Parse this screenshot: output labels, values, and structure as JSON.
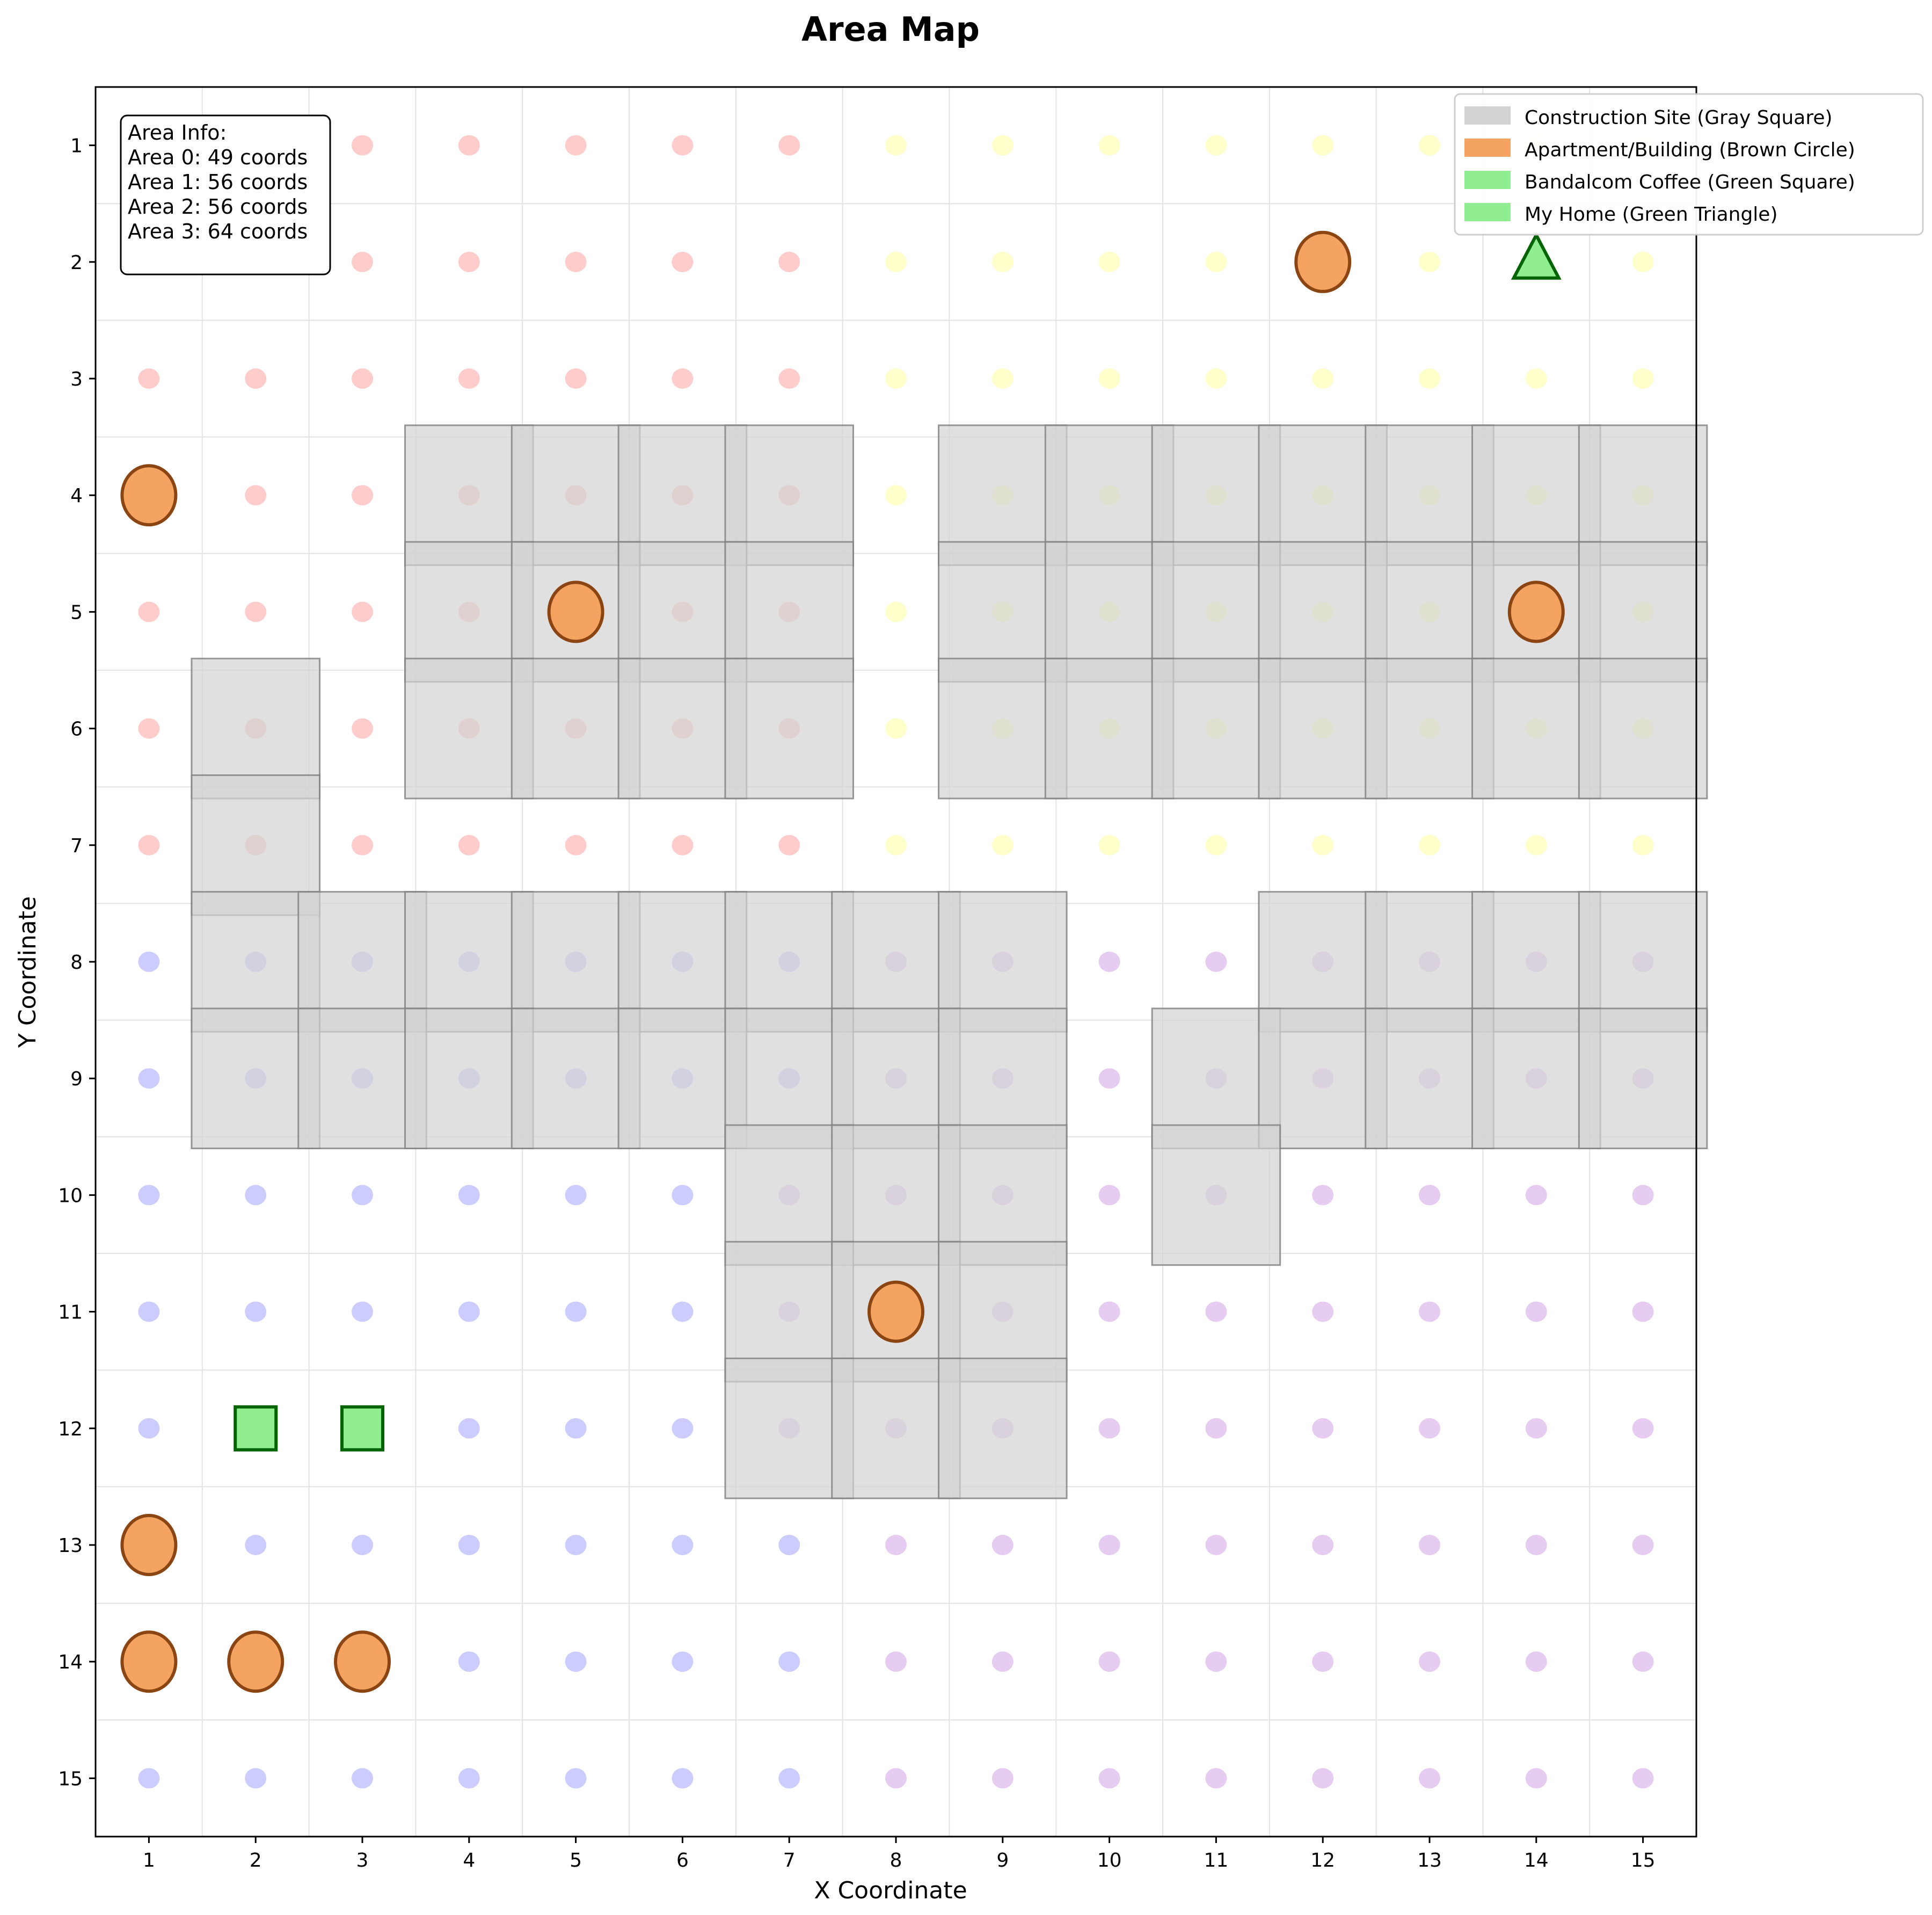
{
  "chart_data": {
    "type": "scatter",
    "title": "Area Map",
    "xlabel": "X Coordinate",
    "ylabel": "Y Coordinate",
    "x_ticks": [
      1,
      2,
      3,
      4,
      5,
      6,
      7,
      8,
      9,
      10,
      11,
      12,
      13,
      14,
      15
    ],
    "y_ticks": [
      1,
      2,
      3,
      4,
      5,
      6,
      7,
      8,
      9,
      10,
      11,
      12,
      13,
      14,
      15
    ],
    "xlim": [
      0.5,
      15.5
    ],
    "ylim": [
      15.5,
      0.5
    ],
    "y_inverted": true,
    "grid": true,
    "legend_position": "top-right",
    "area_info": {
      "title": "Area Info:",
      "lines": [
        "Area 0: 49 coords",
        "Area 1: 56 coords",
        "Area 2: 56 coords",
        "Area 3: 64 coords"
      ]
    },
    "legend": [
      {
        "label": "Construction Site (Gray Square)",
        "color": "#d3d3d3"
      },
      {
        "label": "Apartment/Building (Brown Circle)",
        "color": "#f4a460"
      },
      {
        "label": "Bandalcom Coffee (Green Square)",
        "color": "#90ee90"
      },
      {
        "label": "My Home (Green Triangle)",
        "color": "#90ee90"
      }
    ],
    "area_colors": {
      "0": "#ffcccc",
      "1": "#ffffcc",
      "2": "#ccccff",
      "3": "#e6ccf0"
    },
    "construction_sites": [
      [
        4,
        4
      ],
      [
        5,
        4
      ],
      [
        6,
        4
      ],
      [
        7,
        4
      ],
      [
        4,
        5
      ],
      [
        5,
        5
      ],
      [
        6,
        5
      ],
      [
        7,
        5
      ],
      [
        4,
        6
      ],
      [
        5,
        6
      ],
      [
        6,
        6
      ],
      [
        7,
        6
      ],
      [
        9,
        4
      ],
      [
        10,
        4
      ],
      [
        11,
        4
      ],
      [
        12,
        4
      ],
      [
        13,
        4
      ],
      [
        14,
        4
      ],
      [
        15,
        4
      ],
      [
        9,
        5
      ],
      [
        10,
        5
      ],
      [
        11,
        5
      ],
      [
        12,
        5
      ],
      [
        13,
        5
      ],
      [
        14,
        5
      ],
      [
        15,
        5
      ],
      [
        9,
        6
      ],
      [
        10,
        6
      ],
      [
        11,
        6
      ],
      [
        12,
        6
      ],
      [
        13,
        6
      ],
      [
        14,
        6
      ],
      [
        15,
        6
      ],
      [
        2,
        6
      ],
      [
        2,
        7
      ],
      [
        2,
        8
      ],
      [
        3,
        8
      ],
      [
        4,
        8
      ],
      [
        5,
        8
      ],
      [
        6,
        8
      ],
      [
        7,
        8
      ],
      [
        8,
        8
      ],
      [
        9,
        8
      ],
      [
        2,
        9
      ],
      [
        3,
        9
      ],
      [
        4,
        9
      ],
      [
        5,
        9
      ],
      [
        6,
        9
      ],
      [
        7,
        9
      ],
      [
        8,
        9
      ],
      [
        9,
        9
      ],
      [
        12,
        8
      ],
      [
        13,
        8
      ],
      [
        14,
        8
      ],
      [
        15,
        8
      ],
      [
        11,
        9
      ],
      [
        12,
        9
      ],
      [
        13,
        9
      ],
      [
        14,
        9
      ],
      [
        15,
        9
      ],
      [
        7,
        10
      ],
      [
        8,
        10
      ],
      [
        9,
        10
      ],
      [
        11,
        10
      ],
      [
        7,
        11
      ],
      [
        8,
        11
      ],
      [
        9,
        11
      ],
      [
        7,
        12
      ],
      [
        8,
        12
      ],
      [
        9,
        12
      ]
    ],
    "apartments": [
      [
        12,
        2
      ],
      [
        1,
        4
      ],
      [
        5,
        5
      ],
      [
        14,
        5
      ],
      [
        8,
        11
      ],
      [
        1,
        13
      ],
      [
        1,
        14
      ],
      [
        2,
        14
      ],
      [
        3,
        14
      ]
    ],
    "coffee_shops": [
      [
        2,
        12
      ],
      [
        3,
        12
      ]
    ],
    "home": [
      14,
      2
    ]
  }
}
